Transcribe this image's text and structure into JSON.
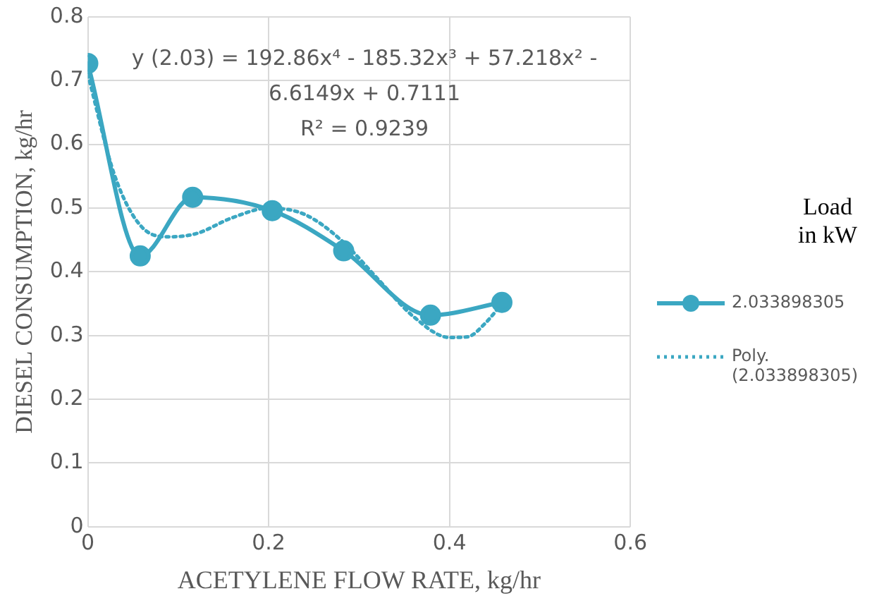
{
  "chart_data": {
    "type": "line",
    "xlabel": "ACETYLENE FLOW RATE, kg/hr",
    "ylabel": "DIESEL CONSUMPTION, kg/hr",
    "legend_title": "Load in kW",
    "series": [
      {
        "name": "2.033898305",
        "color": "#3ba7c2",
        "x": [
          0,
          0.058,
          0.116,
          0.204,
          0.283,
          0.379,
          0.458
        ],
        "values": [
          0.727,
          0.425,
          0.517,
          0.496,
          0.433,
          0.332,
          0.352
        ],
        "marker": "circle",
        "line_style": "solid"
      },
      {
        "name": "Poly. (2.033898305)",
        "color": "#3ba7c2",
        "x": [
          0,
          0.03,
          0.06,
          0.09,
          0.12,
          0.16,
          0.2,
          0.24,
          0.28,
          0.32,
          0.36,
          0.4,
          0.42,
          0.44,
          0.458
        ],
        "values": [
          0.71,
          0.55,
          0.47,
          0.455,
          0.46,
          0.485,
          0.5,
          0.49,
          0.45,
          0.39,
          0.33,
          0.297,
          0.298,
          0.32,
          0.35
        ],
        "marker": "none",
        "line_style": "dotted"
      }
    ],
    "annotations": [
      "y (2.03) = 192.86x⁴ - 185.32x³ + 57.218x² -",
      "6.6149x + 0.7111",
      "R² = 0.9239"
    ],
    "xlim": [
      0,
      0.6
    ],
    "xticks": [
      0,
      0.2,
      0.4,
      0.6
    ],
    "ylim": [
      0,
      0.8
    ],
    "yticks": [
      0,
      0.1,
      0.2,
      0.3,
      0.4,
      0.5,
      0.6,
      0.7,
      0.8
    ],
    "grid": true,
    "legend": "right"
  }
}
